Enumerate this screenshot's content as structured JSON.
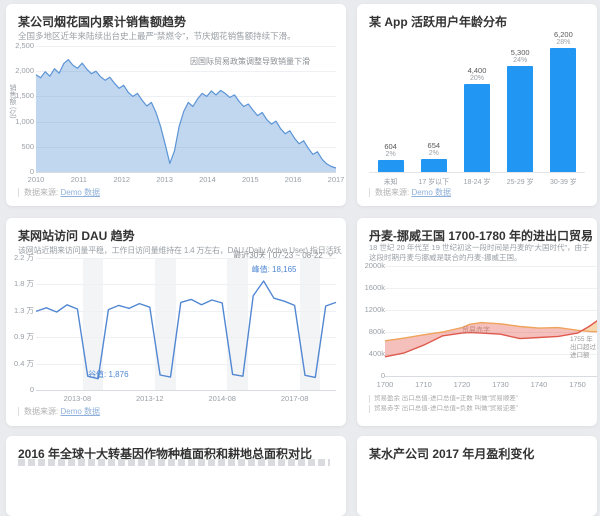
{
  "page": {
    "background": "#e9ebee",
    "card_background": "#ffffff"
  },
  "footer_common": {
    "label": "数据来源:",
    "link": "Demo 数据"
  },
  "chart_data": [
    {
      "id": "fireworks",
      "type": "area",
      "title": "某公司烟花国内累计销售额趋势",
      "subtitle": "全国多地区近年来陆续出台史上最严“禁燃令”，节庆烟花销售额持续下滑。",
      "annotation": "因国际贸易政策调整导致销量下滑",
      "ylabel": "销售额 (亿)",
      "ylim": [
        0,
        2500
      ],
      "y_ticks": [
        "2,500",
        "2,000",
        "1,500",
        "1,000",
        "500",
        "0"
      ],
      "x_ticks": [
        "2010",
        "2011",
        "2012",
        "2013",
        "2014",
        "2015",
        "2016",
        "2017"
      ],
      "values": [
        1930,
        1870,
        1990,
        1900,
        2050,
        1960,
        2150,
        2230,
        2120,
        2060,
        2160,
        2040,
        1950,
        2000,
        1890,
        1820,
        1880,
        1760,
        1660,
        1720,
        1580,
        1500,
        1560,
        1420,
        1310,
        1380,
        1180,
        900,
        550,
        170,
        420,
        900,
        1200,
        1380,
        1300,
        1450,
        1560,
        1500,
        1610,
        1530,
        1620,
        1560,
        1480,
        1530,
        1400,
        1300,
        1350,
        1230,
        1120,
        1180,
        1040,
        950,
        1010,
        860,
        760,
        820,
        670,
        560,
        620,
        470,
        350,
        400,
        250,
        160,
        110,
        80
      ],
      "colors": {
        "line": "#5b94d6",
        "fill": "rgba(91,148,214,0.38)"
      },
      "footer": {
        "label": "数据来源:",
        "link": "Demo 数据"
      }
    },
    {
      "id": "age-distribution",
      "type": "bar",
      "title": "某 App 活跃用户年龄分布",
      "categories": [
        "未知",
        "17 岁以下",
        "18-24 岁",
        "25-29 岁",
        "30-39 岁"
      ],
      "values": [
        604,
        654,
        4400,
        5300,
        6200
      ],
      "value_labels": [
        "604",
        "654",
        "4,400",
        "5,300",
        "6,200"
      ],
      "pct_labels": [
        "2%",
        "2%",
        "20%",
        "24%",
        "28%"
      ],
      "ylim": [
        0,
        6200
      ],
      "bar_color": "#2196f3",
      "footer": {
        "label": "数据来源:",
        "link": "Demo 数据"
      }
    },
    {
      "id": "dau",
      "type": "line",
      "title": "某网站访问 DAU 趋势",
      "subtitle": "该网站近期来访问量平稳，工作日访问量维持在 1.4 万左右，DAU (Daily Active User) 指日活跃用户数量。",
      "selector": {
        "preset": "最近30天",
        "sep": "|",
        "range": "07-23 ~ 08-22"
      },
      "ylim": [
        0,
        22000
      ],
      "y_ticks": [
        "2.2 万",
        "1.8 万",
        "1.3 万",
        "0.9 万",
        "0.4 万",
        "0"
      ],
      "x_ticks": [
        {
          "label": "2013-08",
          "index": 4
        },
        {
          "label": "2013-12",
          "index": 11
        },
        {
          "label": "2014-08",
          "index": 18
        },
        {
          "label": "2017-08",
          "index": 25
        }
      ],
      "values": [
        13100,
        13700,
        13000,
        14200,
        13500,
        2300,
        1876,
        13400,
        14100,
        13600,
        14400,
        13800,
        2500,
        2150,
        14600,
        15100,
        14200,
        15000,
        14500,
        2600,
        2300,
        15700,
        18165,
        15300,
        14800,
        14100,
        2450,
        2100,
        14000,
        14600
      ],
      "peak": {
        "label": "峰值: 18,165",
        "index": 22
      },
      "valley": {
        "label": "谷值: 1,876",
        "index": 6
      },
      "weekend_bands": [
        [
          5,
          6
        ],
        [
          12,
          13
        ],
        [
          19,
          20
        ],
        [
          26,
          27
        ]
      ],
      "colors": {
        "line": "#5287d2",
        "band": "#f3f4f6"
      },
      "footer": {
        "label": "数据来源:",
        "link": "Demo 数据"
      }
    },
    {
      "id": "trade",
      "type": "area",
      "title": "丹麦-挪威王国 1700-1780 年的进出口贸易",
      "subtitle": "18 世纪 20 年代至 19 世纪初这一段时间是丹麦的“大国时代”，由于这段时期丹麦与挪威是联合的丹麦-挪威王国。",
      "xlim": [
        1700,
        1760
      ],
      "ylim": [
        0,
        2000
      ],
      "y_ticks": [
        "2000k",
        "1600k",
        "1200k",
        "800k",
        "400k",
        "0"
      ],
      "x_ticks": [
        "1700",
        "1710",
        "1720",
        "1730",
        "1740",
        "1750",
        "1760"
      ],
      "x": [
        1700,
        1705,
        1710,
        1715,
        1720,
        1722,
        1725,
        1730,
        1735,
        1740,
        1745,
        1750,
        1753,
        1756,
        1760
      ],
      "series": [
        {
          "name": "进口总值",
          "color": "#efa35c",
          "values": [
            640,
            690,
            750,
            800,
            880,
            940,
            970,
            950,
            900,
            870,
            880,
            830,
            810,
            800,
            790
          ]
        },
        {
          "name": "出口总值",
          "color": "#df5a4e",
          "values": [
            350,
            420,
            560,
            730,
            780,
            790,
            780,
            760,
            680,
            700,
            720,
            780,
            900,
            1050,
            1150
          ]
        }
      ],
      "deficit_label": "贸易赤字",
      "annotation_lines": [
        "1755 年",
        "出口超过",
        "进口额"
      ],
      "legend_notes": [
        "贸易盈余  出口总值-进口总值=正数 叫做“贸易顺差”",
        "贸易赤字  出口总值-进口总值=负数 叫做“贸易逆差”"
      ],
      "colors": {
        "deficit_fill": "rgba(231,98,84,0.40)",
        "surplus_fill": "rgba(242,178,97,0.50)"
      }
    },
    {
      "id": "gmo",
      "type": "bar",
      "title": "2016 年全球十大转基因作物种植面积和耕地总面积对比"
    },
    {
      "id": "fishery",
      "type": "line",
      "title": "某水产公司 2017 年月盈利变化"
    }
  ]
}
